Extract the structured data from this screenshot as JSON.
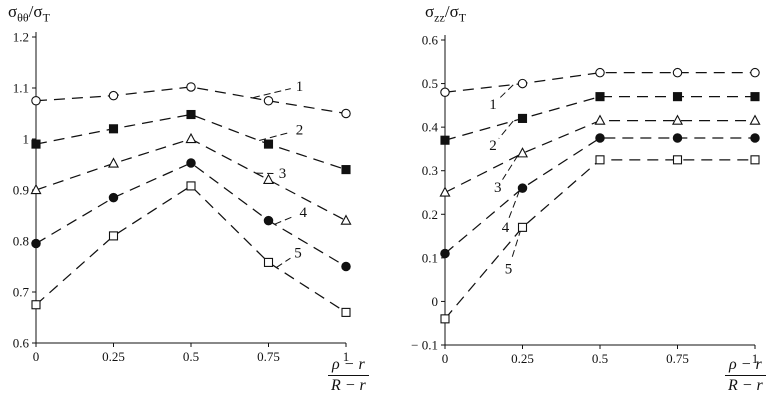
{
  "page": {
    "background": "#ffffff",
    "line_color": "#111111"
  },
  "chart_data": [
    {
      "id": "left",
      "type": "line",
      "title": "",
      "y_title": {
        "sym": "σ",
        "sub": "θθ",
        "slash": "/",
        "sym2": "σ",
        "sub2": "T"
      },
      "x_title": {
        "numerator": "ρ − r",
        "denominator": "R − r"
      },
      "xlim": [
        0,
        1
      ],
      "ylim": [
        0.6,
        1.2
      ],
      "grid": false,
      "legend": "numbered-labels-on-plot",
      "line_style": "dashed",
      "x": [
        0,
        0.25,
        0.5,
        0.75,
        1
      ],
      "x_tick_labels": [
        "0",
        "0.25",
        "0.5",
        "0.75",
        "1"
      ],
      "y_ticks": [
        1.2,
        1.1,
        1,
        0.9,
        0.8,
        0.7,
        0.6
      ],
      "y_tick_labels": [
        "1.2",
        "1.1",
        "1",
        "0.9",
        "0.8",
        "0.7",
        "0.6"
      ],
      "series": [
        {
          "label": "1",
          "marker": "circle-open",
          "values": [
            1.075,
            1.085,
            1.102,
            1.075,
            1.05
          ],
          "label_pos": [
            0.85,
            1.103
          ],
          "anchor": [
            0.7,
            1.081
          ]
        },
        {
          "label": "2",
          "marker": "square-filled",
          "values": [
            0.99,
            1.02,
            1.048,
            0.99,
            0.94
          ],
          "label_pos": [
            0.85,
            1.018
          ],
          "anchor": [
            0.72,
            0.997
          ]
        },
        {
          "label": "3",
          "marker": "triangle-open",
          "values": [
            0.9,
            0.952,
            1.0,
            0.92,
            0.84
          ],
          "label_pos": [
            0.795,
            0.932
          ],
          "anchor": [
            0.71,
            0.933
          ]
        },
        {
          "label": "4",
          "marker": "circle-filled",
          "values": [
            0.795,
            0.885,
            0.953,
            0.84,
            0.75
          ],
          "label_pos": [
            0.862,
            0.856
          ],
          "anchor": [
            0.77,
            0.833
          ]
        },
        {
          "label": "5",
          "marker": "square-open",
          "values": [
            0.675,
            0.81,
            0.908,
            0.758,
            0.66
          ],
          "label_pos": [
            0.845,
            0.776
          ],
          "anchor": [
            0.775,
            0.748
          ]
        }
      ]
    },
    {
      "id": "right",
      "type": "line",
      "title": "",
      "y_title": {
        "sym": "σ",
        "sub": "zz",
        "slash": "/",
        "sym2": "σ",
        "sub2": "T"
      },
      "x_title": {
        "numerator": "ρ − r",
        "denominator": "R − r"
      },
      "xlim": [
        0,
        1
      ],
      "ylim": [
        -0.1,
        0.6
      ],
      "grid": false,
      "legend": "numbered-labels-on-plot",
      "line_style": "dashed",
      "x": [
        0,
        0.25,
        0.5,
        0.75,
        1
      ],
      "x_tick_labels": [
        "0",
        "0.25",
        "0.5",
        "0.75",
        "1"
      ],
      "y_ticks": [
        0.6,
        0.5,
        0.4,
        0.3,
        0.2,
        0.1,
        0,
        -0.1
      ],
      "y_tick_labels": [
        "0.6",
        "0.5",
        "0.4",
        "0.3",
        "0.2",
        "0.1",
        "0",
        "− 0.1"
      ],
      "series": [
        {
          "label": "1",
          "marker": "circle-open",
          "values": [
            0.48,
            0.5,
            0.525,
            0.525,
            0.525
          ],
          "label_pos": [
            0.155,
            0.452
          ],
          "anchor": [
            0.22,
            0.497
          ]
        },
        {
          "label": "2",
          "marker": "square-filled",
          "values": [
            0.37,
            0.42,
            0.47,
            0.47,
            0.47
          ],
          "label_pos": [
            0.155,
            0.358
          ],
          "anchor": [
            0.22,
            0.414
          ]
        },
        {
          "label": "3",
          "marker": "triangle-open",
          "values": [
            0.25,
            0.34,
            0.415,
            0.415,
            0.415
          ],
          "label_pos": [
            0.17,
            0.262
          ],
          "anchor": [
            0.235,
            0.335
          ]
        },
        {
          "label": "4",
          "marker": "circle-filled",
          "values": [
            0.11,
            0.26,
            0.375,
            0.375,
            0.375
          ],
          "label_pos": [
            0.195,
            0.17
          ],
          "anchor": [
            0.24,
            0.254
          ]
        },
        {
          "label": "5",
          "marker": "square-open",
          "values": [
            -0.04,
            0.17,
            0.325,
            0.325,
            0.325
          ],
          "label_pos": [
            0.205,
            0.075
          ],
          "anchor": [
            0.245,
            0.166
          ]
        }
      ]
    }
  ]
}
